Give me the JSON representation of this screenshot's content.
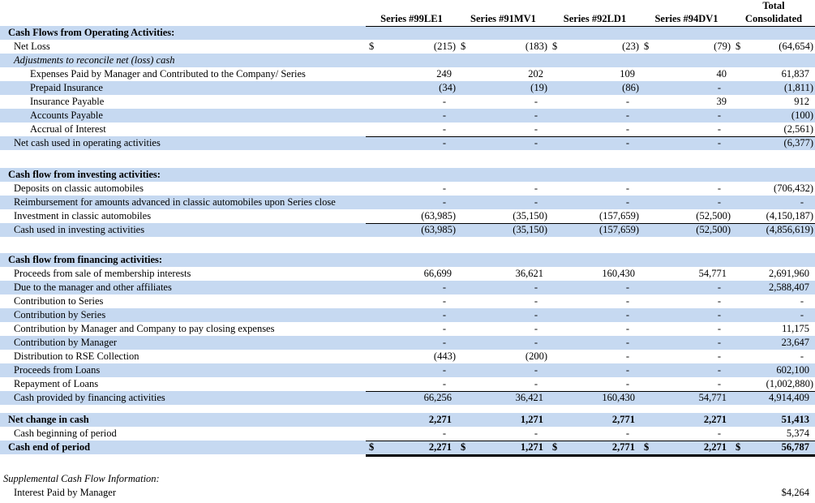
{
  "table": {
    "stripe_color": "#c6d9f1",
    "header": {
      "series_columns": [
        "Series #99LE1",
        "Series #91MV1",
        "Series #92LD1",
        "Series #94DV1"
      ],
      "total_column_line1": "Total",
      "total_column_line2": "Consolidated"
    },
    "rows": [
      {
        "label": "Cash Flows from Operating Activities:",
        "indent": 0,
        "bold": true,
        "stripe": true,
        "values": [
          "",
          "",
          "",
          "",
          ""
        ]
      },
      {
        "label": "Net Loss",
        "indent": 1,
        "dollar": true,
        "values": [
          "(215)",
          "(183)",
          "(23)",
          "(79)",
          "(64,654)"
        ]
      },
      {
        "label": "Adjustments to reconcile net (loss) cash",
        "indent": 1,
        "italic": true,
        "stripe": true,
        "values": [
          "",
          "",
          "",
          "",
          ""
        ]
      },
      {
        "label": "Expenses Paid by Manager and Contributed to the Company/ Series",
        "indent": 2,
        "values": [
          "249",
          "202",
          "109",
          "40",
          "61,837"
        ]
      },
      {
        "label": "Prepaid Insurance",
        "indent": 2,
        "stripe": true,
        "values": [
          "(34)",
          "(19)",
          "(86)",
          "-",
          "(1,811)"
        ]
      },
      {
        "label": "Insurance Payable",
        "indent": 2,
        "values": [
          "-",
          "-",
          "-",
          "39",
          "912"
        ]
      },
      {
        "label": "Accounts Payable",
        "indent": 2,
        "stripe": true,
        "values": [
          "-",
          "-",
          "-",
          "-",
          "(100)"
        ]
      },
      {
        "label": "Accrual of Interest",
        "indent": 2,
        "border": "bottom",
        "values": [
          "-",
          "-",
          "-",
          "-",
          "(2,561)"
        ]
      },
      {
        "label": "Net cash used in operating activities",
        "indent": 1,
        "stripe": true,
        "values": [
          "-",
          "-",
          "-",
          "-",
          "(6,377)"
        ]
      },
      {
        "spacer": 22
      },
      {
        "label": "Cash flow from investing activities:",
        "indent": 0,
        "bold": true,
        "stripe": true,
        "values": [
          "",
          "",
          "",
          "",
          ""
        ]
      },
      {
        "label": "Deposits on classic automobiles",
        "indent": 1,
        "values": [
          "-",
          "-",
          "-",
          "-",
          "(706,432)"
        ]
      },
      {
        "label": "Reimbursement for amounts advanced in classic automobiles upon Series close",
        "indent": 1,
        "stripe": true,
        "values": [
          "-",
          "-",
          "-",
          "-",
          "-"
        ]
      },
      {
        "label": "Investment in classic automobiles",
        "indent": 1,
        "border": "bottom",
        "values": [
          "(63,985)",
          "(35,150)",
          "(157,659)",
          "(52,500)",
          "(4,150,187)"
        ]
      },
      {
        "label": "Cash used in investing activities",
        "indent": 1,
        "stripe": true,
        "values": [
          "(63,985)",
          "(35,150)",
          "(157,659)",
          "(52,500)",
          "(4,856,619)"
        ]
      },
      {
        "spacer": 20
      },
      {
        "label": "Cash flow from financing activities:",
        "indent": 0,
        "bold": true,
        "stripe": true,
        "values": [
          "",
          "",
          "",
          "",
          ""
        ]
      },
      {
        "label": "Proceeds from sale of membership interests",
        "indent": 1,
        "values": [
          "66,699",
          "36,621",
          "160,430",
          "54,771",
          "2,691,960"
        ]
      },
      {
        "label": "Due to the manager and other affiliates",
        "indent": 1,
        "stripe": true,
        "values": [
          "-",
          "-",
          "-",
          "-",
          "2,588,407"
        ]
      },
      {
        "label": "Contribution to Series",
        "indent": 1,
        "values": [
          "-",
          "-",
          "-",
          "-",
          "-"
        ]
      },
      {
        "label": "Contribution by Series",
        "indent": 1,
        "stripe": true,
        "values": [
          "-",
          "-",
          "-",
          "-",
          "-"
        ]
      },
      {
        "label": "Contribution by Manager and Company to pay closing expenses",
        "indent": 1,
        "values": [
          "-",
          "-",
          "-",
          "-",
          "11,175"
        ]
      },
      {
        "label": "Contribution by Manager",
        "indent": 1,
        "stripe": true,
        "values": [
          "-",
          "-",
          "-",
          "-",
          "23,647"
        ]
      },
      {
        "label": "Distribution to RSE Collection",
        "indent": 1,
        "values": [
          "(443)",
          "(200)",
          "-",
          "-",
          "-"
        ]
      },
      {
        "label": "Proceeds from Loans",
        "indent": 1,
        "stripe": true,
        "values": [
          "-",
          "-",
          "-",
          "-",
          "602,100"
        ]
      },
      {
        "label": "Repayment of Loans",
        "indent": 1,
        "border": "bottom",
        "values": [
          "-",
          "-",
          "-",
          "-",
          "(1,002,880)"
        ]
      },
      {
        "label": "Cash provided by financing activities",
        "indent": 1,
        "stripe": true,
        "values": [
          "66,256",
          "36,421",
          "160,430",
          "54,771",
          "4,914,409"
        ]
      },
      {
        "spacer": 10
      },
      {
        "label": "Net change in cash",
        "indent": 0,
        "bold": true,
        "stripe": true,
        "values": [
          "2,271",
          "1,271",
          "2,771",
          "2,271",
          "51,413"
        ]
      },
      {
        "label": "Cash beginning of period",
        "indent": 1,
        "border": "bottom",
        "values": [
          "-",
          "-",
          "-",
          "-",
          "5,374"
        ]
      },
      {
        "label": "Cash end of period",
        "indent": 0,
        "bold": true,
        "stripe": true,
        "dollar": true,
        "border": "thick",
        "values": [
          "2,271",
          "1,271",
          "2,771",
          "2,271",
          "56,787"
        ]
      },
      {
        "spacer": 22
      },
      {
        "label": "Supplemental Cash Flow Information:",
        "indent": 3,
        "italic": true,
        "values": [
          "",
          "",
          "",
          "",
          ""
        ]
      },
      {
        "label": "Interest Paid by Manager",
        "indent": 1,
        "values": [
          "",
          "",
          "",
          "",
          "$4,264"
        ]
      }
    ]
  }
}
